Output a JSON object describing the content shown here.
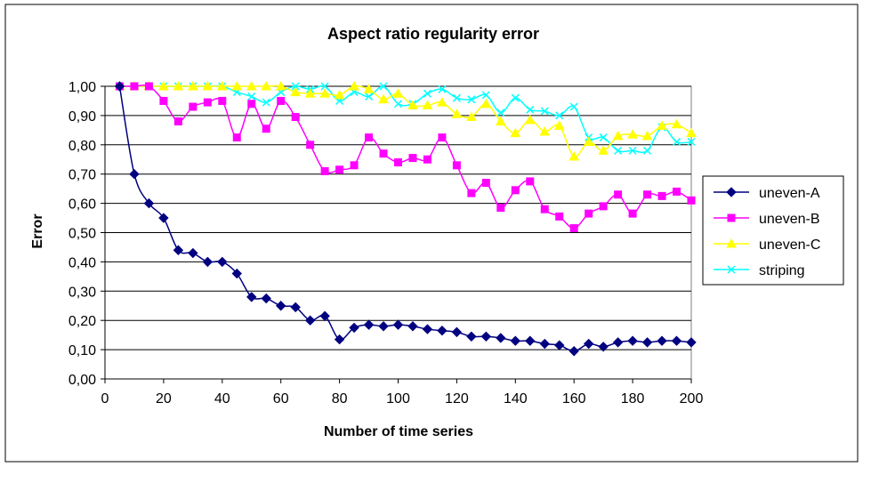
{
  "chart_data": {
    "type": "line",
    "title": "Aspect ratio regularity error",
    "xlabel": "Number of time series",
    "ylabel": "Error",
    "xlim": [
      0,
      200
    ],
    "ylim": [
      0,
      1
    ],
    "x_ticks": [
      "0",
      "20",
      "40",
      "60",
      "80",
      "100",
      "120",
      "140",
      "160",
      "180",
      "200"
    ],
    "y_ticks": [
      "0,00",
      "0,10",
      "0,20",
      "0,30",
      "0,40",
      "0,50",
      "0,60",
      "0,70",
      "0,80",
      "0,90",
      "1,00"
    ],
    "grid": "horizontal",
    "legend_position": "right",
    "x": [
      5,
      10,
      15,
      20,
      25,
      30,
      35,
      40,
      45,
      50,
      55,
      60,
      65,
      70,
      75,
      80,
      85,
      90,
      95,
      100,
      105,
      110,
      115,
      120,
      125,
      130,
      135,
      140,
      145,
      150,
      155,
      160,
      165,
      170,
      175,
      180,
      185,
      190,
      195,
      200
    ],
    "series": [
      {
        "name": "uneven-A",
        "color": "#000080",
        "marker": "diamond",
        "values": [
          1.0,
          0.7,
          0.6,
          0.55,
          0.44,
          0.43,
          0.4,
          0.4,
          0.36,
          0.28,
          0.275,
          0.25,
          0.245,
          0.2,
          0.215,
          0.135,
          0.175,
          0.185,
          0.18,
          0.185,
          0.18,
          0.17,
          0.165,
          0.16,
          0.145,
          0.145,
          0.14,
          0.13,
          0.13,
          0.12,
          0.115,
          0.095,
          0.12,
          0.11,
          0.125,
          0.13,
          0.125,
          0.13,
          0.13,
          0.125
        ]
      },
      {
        "name": "uneven-B",
        "color": "#FF00FF",
        "marker": "square",
        "values": [
          1.0,
          1.0,
          1.0,
          0.95,
          0.88,
          0.93,
          0.945,
          0.95,
          0.825,
          0.94,
          0.855,
          0.95,
          0.895,
          0.8,
          0.71,
          0.715,
          0.73,
          0.825,
          0.77,
          0.74,
          0.755,
          0.75,
          0.825,
          0.73,
          0.635,
          0.67,
          0.585,
          0.645,
          0.675,
          0.58,
          0.555,
          0.515,
          0.565,
          0.59,
          0.63,
          0.565,
          0.63,
          0.625,
          0.64,
          0.61
        ]
      },
      {
        "name": "uneven-C",
        "color": "#FFFF00",
        "marker": "triangle",
        "values": [
          1.0,
          1.0,
          1.0,
          1.0,
          1.0,
          1.0,
          1.0,
          1.0,
          1.0,
          1.0,
          1.0,
          1.0,
          0.98,
          0.975,
          0.975,
          0.97,
          1.0,
          0.99,
          0.955,
          0.975,
          0.935,
          0.935,
          0.945,
          0.905,
          0.895,
          0.94,
          0.88,
          0.84,
          0.885,
          0.845,
          0.865,
          0.76,
          0.81,
          0.78,
          0.83,
          0.835,
          0.83,
          0.865,
          0.87,
          0.84
        ]
      },
      {
        "name": "striping",
        "color": "#00FFFF",
        "marker": "x",
        "values": [
          1.0,
          1.0,
          1.0,
          1.0,
          1.0,
          1.0,
          1.0,
          1.0,
          0.98,
          0.965,
          0.945,
          0.98,
          1.0,
          0.99,
          1.0,
          0.95,
          0.98,
          0.965,
          1.0,
          0.94,
          0.94,
          0.975,
          0.99,
          0.96,
          0.955,
          0.97,
          0.91,
          0.96,
          0.92,
          0.915,
          0.9,
          0.93,
          0.825,
          0.825,
          0.78,
          0.78,
          0.78,
          0.86,
          0.81,
          0.81
        ]
      }
    ]
  }
}
